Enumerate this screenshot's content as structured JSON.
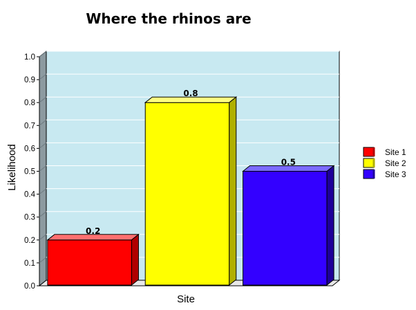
{
  "chart_data": {
    "type": "bar",
    "title": "Where the rhinos are",
    "xlabel": "Site",
    "ylabel": "Likelihood",
    "categories": [
      "Site 1",
      "Site 2",
      "Site 3"
    ],
    "values": [
      0.2,
      0.8,
      0.5
    ],
    "data_labels": [
      "0.2",
      "0.8",
      "0.5"
    ],
    "ylim": [
      0,
      1.0
    ],
    "yticks": [
      "0.0",
      "0.1",
      "0.2",
      "0.3",
      "0.4",
      "0.5",
      "0.6",
      "0.7",
      "0.8",
      "0.9",
      "1.0"
    ],
    "grid": true,
    "legend_position": "right",
    "three_d": true,
    "colors": {
      "plot_background": "#c8e9f1",
      "gridline": "#ffffff",
      "wall_side": "#8c9aa0",
      "floor": "#e8e8e8",
      "bars": [
        "#ff0000",
        "#ffff00",
        "#3300ff"
      ],
      "bar_tops": [
        "#ff7070",
        "#ffff80",
        "#7a6aff"
      ],
      "bar_sides": [
        "#b00000",
        "#b0b000",
        "#1e0099"
      ]
    }
  }
}
